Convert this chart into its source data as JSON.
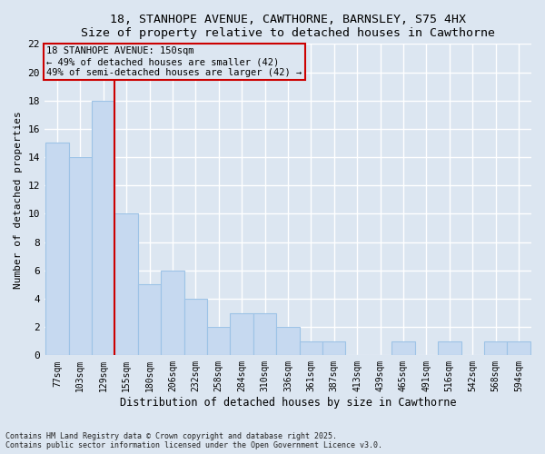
{
  "title": "18, STANHOPE AVENUE, CAWTHORNE, BARNSLEY, S75 4HX",
  "subtitle": "Size of property relative to detached houses in Cawthorne",
  "xlabel": "Distribution of detached houses by size in Cawthorne",
  "ylabel": "Number of detached properties",
  "categories": [
    "77sqm",
    "103sqm",
    "129sqm",
    "155sqm",
    "180sqm",
    "206sqm",
    "232sqm",
    "258sqm",
    "284sqm",
    "310sqm",
    "336sqm",
    "361sqm",
    "387sqm",
    "413sqm",
    "439sqm",
    "465sqm",
    "491sqm",
    "516sqm",
    "542sqm",
    "568sqm",
    "594sqm"
  ],
  "values": [
    15,
    14,
    18,
    10,
    5,
    6,
    4,
    2,
    3,
    3,
    2,
    1,
    1,
    0,
    0,
    1,
    0,
    1,
    0,
    1,
    1
  ],
  "bar_color": "#c6d9f0",
  "bar_edge_color": "#9dc3e6",
  "vline_x": 2.5,
  "annotation_text": "18 STANHOPE AVENUE: 150sqm\n← 49% of detached houses are smaller (42)\n49% of semi-detached houses are larger (42) →",
  "vline_color": "#cc0000",
  "annotation_box_edge": "#cc0000",
  "ylim": [
    0,
    22
  ],
  "yticks": [
    0,
    2,
    4,
    6,
    8,
    10,
    12,
    14,
    16,
    18,
    20,
    22
  ],
  "footer_line1": "Contains HM Land Registry data © Crown copyright and database right 2025.",
  "footer_line2": "Contains public sector information licensed under the Open Government Licence v3.0.",
  "background_color": "#dce6f1",
  "plot_bg_color": "#dce6f1",
  "grid_color": "#ffffff"
}
